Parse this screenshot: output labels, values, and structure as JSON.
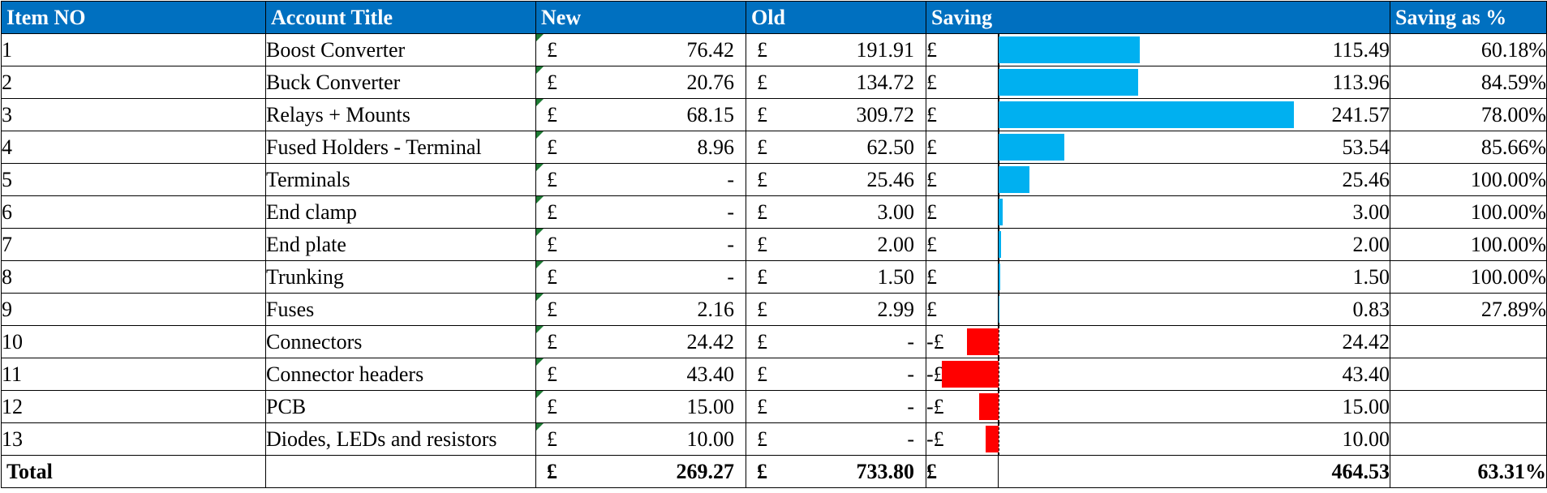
{
  "headers": {
    "item_no": "Item NO",
    "account_title": "Account Title",
    "new": "New",
    "old": "Old",
    "saving": "Saving",
    "saving_pct": "Saving as  %"
  },
  "currency": "£",
  "max_saving": 241.57,
  "rows": [
    {
      "item": "1",
      "title": "Boost Converter",
      "new": "76.42",
      "old": "191.91",
      "saving_sign": "£",
      "saving": "115.49",
      "saving_value": 115.49,
      "pct": "60.18%"
    },
    {
      "item": "2",
      "title": "Buck Converter",
      "new": "20.76",
      "old": "134.72",
      "saving_sign": "£",
      "saving": "113.96",
      "saving_value": 113.96,
      "pct": "84.59%"
    },
    {
      "item": "3",
      "title": "Relays + Mounts",
      "new": "68.15",
      "old": "309.72",
      "saving_sign": "£",
      "saving": "241.57",
      "saving_value": 241.57,
      "pct": "78.00%"
    },
    {
      "item": "4",
      "title": "Fused Holders - Terminal",
      "new": "8.96",
      "old": "62.50",
      "saving_sign": "£",
      "saving": "53.54",
      "saving_value": 53.54,
      "pct": "85.66%"
    },
    {
      "item": "5",
      "title": "Terminals",
      "new": "-",
      "old": "25.46",
      "saving_sign": "£",
      "saving": "25.46",
      "saving_value": 25.46,
      "pct": "100.00%"
    },
    {
      "item": "6",
      "title": "End clamp",
      "new": "-",
      "old": "3.00",
      "saving_sign": "£",
      "saving": "3.00",
      "saving_value": 3.0,
      "pct": "100.00%"
    },
    {
      "item": "7",
      "title": "End plate",
      "new": "-",
      "old": "2.00",
      "saving_sign": "£",
      "saving": "2.00",
      "saving_value": 2.0,
      "pct": "100.00%"
    },
    {
      "item": "8",
      "title": "Trunking",
      "new": "-",
      "old": "1.50",
      "saving_sign": "£",
      "saving": "1.50",
      "saving_value": 1.5,
      "pct": "100.00%"
    },
    {
      "item": "9",
      "title": "Fuses",
      "new": "2.16",
      "old": "2.99",
      "saving_sign": "£",
      "saving": "0.83",
      "saving_value": 0.83,
      "pct": "27.89%"
    },
    {
      "item": "10",
      "title": "Connectors",
      "new": "24.42",
      "old": "-",
      "saving_sign": "-£",
      "saving": "24.42",
      "saving_value": -24.42,
      "pct": ""
    },
    {
      "item": "11",
      "title": "Connector headers",
      "new": "43.40",
      "old": "-",
      "saving_sign": "-£",
      "saving": "43.40",
      "saving_value": -43.4,
      "pct": ""
    },
    {
      "item": "12",
      "title": "PCB",
      "new": "15.00",
      "old": "-",
      "saving_sign": "-£",
      "saving": "15.00",
      "saving_value": -15.0,
      "pct": ""
    },
    {
      "item": "13",
      "title": "Diodes, LEDs and resistors",
      "new": "10.00",
      "old": "-",
      "saving_sign": "-£",
      "saving": "10.00",
      "saving_value": -10.0,
      "pct": ""
    }
  ],
  "total": {
    "label": "Total",
    "new": "269.27",
    "old": "733.80",
    "saving": "464.53",
    "pct": "63.31%"
  }
}
